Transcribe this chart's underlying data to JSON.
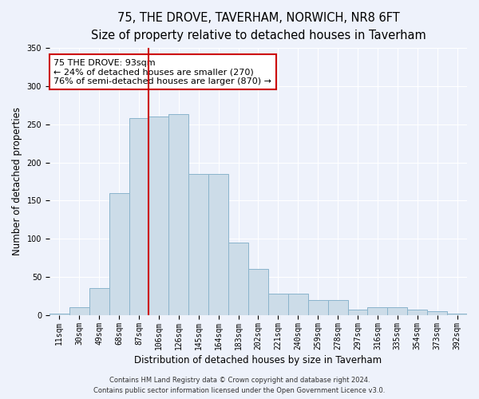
{
  "title": "75, THE DROVE, TAVERHAM, NORWICH, NR8 6FT",
  "subtitle": "Size of property relative to detached houses in Taverham",
  "xlabel": "Distribution of detached houses by size in Taverham",
  "ylabel": "Number of detached properties",
  "categories": [
    "11sqm",
    "30sqm",
    "49sqm",
    "68sqm",
    "87sqm",
    "106sqm",
    "126sqm",
    "145sqm",
    "164sqm",
    "183sqm",
    "202sqm",
    "221sqm",
    "240sqm",
    "259sqm",
    "278sqm",
    "297sqm",
    "316sqm",
    "335sqm",
    "354sqm",
    "373sqm",
    "392sqm"
  ],
  "values": [
    2,
    10,
    35,
    160,
    258,
    260,
    263,
    185,
    185,
    95,
    60,
    28,
    28,
    20,
    20,
    7,
    10,
    10,
    7,
    5,
    2
  ],
  "bar_color": "#ccdce8",
  "bar_edgecolor": "#8ab4cc",
  "vline_color": "#cc0000",
  "ylim": [
    0,
    350
  ],
  "yticks": [
    0,
    50,
    100,
    150,
    200,
    250,
    300,
    350
  ],
  "annotation_text": "75 THE DROVE: 93sqm\n← 24% of detached houses are smaller (270)\n76% of semi-detached houses are larger (870) →",
  "annotation_box_facecolor": "#ffffff",
  "annotation_box_edgecolor": "#cc0000",
  "footer_line1": "Contains HM Land Registry data © Crown copyright and database right 2024.",
  "footer_line2": "Contains public sector information licensed under the Open Government Licence v3.0.",
  "background_color": "#eef2fb",
  "plot_background": "#eef2fb",
  "title_fontsize": 10.5,
  "subtitle_fontsize": 9.5,
  "tick_fontsize": 7,
  "ylabel_fontsize": 8.5,
  "xlabel_fontsize": 8.5,
  "footer_fontsize": 6,
  "annot_fontsize": 8,
  "vline_xindex": 4.5
}
